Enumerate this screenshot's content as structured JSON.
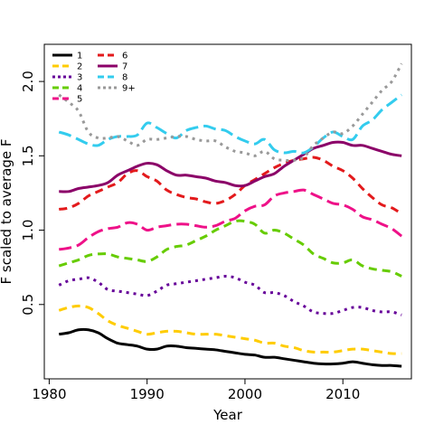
{
  "chart_data": {
    "type": "line",
    "xlabel": "Year",
    "ylabel": "F scaled to average F",
    "xlim": [
      1979.5,
      2017
    ],
    "ylim": [
      0,
      2.25
    ],
    "xticks": [
      1980,
      1990,
      2000,
      2010
    ],
    "yticks": [
      0.5,
      1.0,
      1.5,
      2.0
    ],
    "x": [
      1981,
      1982,
      1983,
      1984,
      1985,
      1986,
      1987,
      1988,
      1989,
      1990,
      1991,
      1992,
      1993,
      1994,
      1995,
      1996,
      1997,
      1998,
      1999,
      2000,
      2001,
      2002,
      2003,
      2004,
      2005,
      2006,
      2007,
      2008,
      2009,
      2010,
      2011,
      2012,
      2013,
      2014,
      2015,
      2016
    ],
    "legend_position": "top-left",
    "series": [
      {
        "name": "1",
        "color": "#000000",
        "dash": "solid",
        "values": [
          0.3,
          0.31,
          0.33,
          0.33,
          0.31,
          0.27,
          0.24,
          0.23,
          0.22,
          0.2,
          0.2,
          0.22,
          0.22,
          0.21,
          0.205,
          0.2,
          0.195,
          0.185,
          0.175,
          0.165,
          0.16,
          0.145,
          0.145,
          0.135,
          0.125,
          0.115,
          0.105,
          0.1,
          0.1,
          0.105,
          0.115,
          0.105,
          0.095,
          0.09,
          0.09,
          0.085
        ]
      },
      {
        "name": "2",
        "color": "#FFCC00",
        "dash": "dash",
        "values": [
          0.46,
          0.48,
          0.49,
          0.48,
          0.44,
          0.39,
          0.36,
          0.34,
          0.32,
          0.3,
          0.31,
          0.32,
          0.32,
          0.31,
          0.3,
          0.3,
          0.3,
          0.29,
          0.28,
          0.27,
          0.26,
          0.24,
          0.24,
          0.22,
          0.21,
          0.19,
          0.18,
          0.18,
          0.18,
          0.19,
          0.2,
          0.2,
          0.19,
          0.18,
          0.17,
          0.17
        ]
      },
      {
        "name": "3",
        "color": "#660099",
        "dash": "dot",
        "values": [
          0.63,
          0.66,
          0.67,
          0.68,
          0.65,
          0.6,
          0.59,
          0.58,
          0.57,
          0.56,
          0.59,
          0.63,
          0.64,
          0.65,
          0.66,
          0.67,
          0.68,
          0.69,
          0.68,
          0.65,
          0.63,
          0.58,
          0.58,
          0.56,
          0.52,
          0.49,
          0.45,
          0.44,
          0.44,
          0.46,
          0.48,
          0.48,
          0.46,
          0.45,
          0.45,
          0.43
        ]
      },
      {
        "name": "4",
        "color": "#66CC00",
        "dash": "dash",
        "values": [
          0.76,
          0.78,
          0.8,
          0.83,
          0.84,
          0.84,
          0.82,
          0.81,
          0.8,
          0.79,
          0.82,
          0.87,
          0.89,
          0.9,
          0.93,
          0.96,
          1.0,
          1.03,
          1.06,
          1.06,
          1.04,
          0.98,
          1.0,
          0.98,
          0.94,
          0.9,
          0.84,
          0.81,
          0.78,
          0.78,
          0.8,
          0.76,
          0.74,
          0.73,
          0.72,
          0.69
        ]
      },
      {
        "name": "5",
        "color": "#EE1188",
        "dash": "longdash",
        "values": [
          0.87,
          0.88,
          0.9,
          0.95,
          0.99,
          1.01,
          1.02,
          1.05,
          1.04,
          1.0,
          1.02,
          1.03,
          1.04,
          1.04,
          1.03,
          1.02,
          1.03,
          1.06,
          1.08,
          1.13,
          1.16,
          1.17,
          1.23,
          1.25,
          1.26,
          1.27,
          1.24,
          1.21,
          1.18,
          1.17,
          1.14,
          1.09,
          1.07,
          1.04,
          1.01,
          0.96
        ]
      },
      {
        "name": "6",
        "color": "#E31A1C",
        "dash": "dash",
        "values": [
          1.14,
          1.15,
          1.18,
          1.23,
          1.26,
          1.29,
          1.32,
          1.38,
          1.4,
          1.36,
          1.33,
          1.27,
          1.24,
          1.22,
          1.21,
          1.19,
          1.18,
          1.2,
          1.24,
          1.3,
          1.34,
          1.38,
          1.42,
          1.45,
          1.47,
          1.48,
          1.49,
          1.47,
          1.43,
          1.4,
          1.35,
          1.28,
          1.22,
          1.17,
          1.15,
          1.11
        ]
      },
      {
        "name": "7",
        "color": "#8B0068",
        "dash": "solid",
        "values": [
          1.26,
          1.26,
          1.28,
          1.29,
          1.3,
          1.32,
          1.37,
          1.4,
          1.43,
          1.45,
          1.44,
          1.4,
          1.37,
          1.37,
          1.36,
          1.35,
          1.33,
          1.32,
          1.3,
          1.3,
          1.33,
          1.36,
          1.38,
          1.43,
          1.47,
          1.51,
          1.55,
          1.57,
          1.59,
          1.59,
          1.57,
          1.57,
          1.55,
          1.53,
          1.51,
          1.5
        ]
      },
      {
        "name": "8",
        "color": "#33CCEE",
        "dash": "longdash",
        "values": [
          1.66,
          1.64,
          1.61,
          1.58,
          1.57,
          1.61,
          1.63,
          1.63,
          1.64,
          1.72,
          1.69,
          1.65,
          1.62,
          1.67,
          1.69,
          1.7,
          1.68,
          1.67,
          1.63,
          1.6,
          1.58,
          1.61,
          1.54,
          1.52,
          1.53,
          1.52,
          1.56,
          1.62,
          1.66,
          1.63,
          1.61,
          1.7,
          1.74,
          1.81,
          1.86,
          1.91
        ]
      },
      {
        "name": "9+",
        "color": "#999999",
        "dash": "dot",
        "values": [
          1.91,
          1.86,
          1.8,
          1.66,
          1.62,
          1.62,
          1.63,
          1.6,
          1.57,
          1.61,
          1.61,
          1.62,
          1.63,
          1.63,
          1.61,
          1.6,
          1.6,
          1.56,
          1.53,
          1.52,
          1.5,
          1.53,
          1.48,
          1.47,
          1.47,
          1.49,
          1.57,
          1.62,
          1.66,
          1.65,
          1.7,
          1.78,
          1.86,
          1.94,
          2.0,
          2.12
        ]
      }
    ]
  }
}
